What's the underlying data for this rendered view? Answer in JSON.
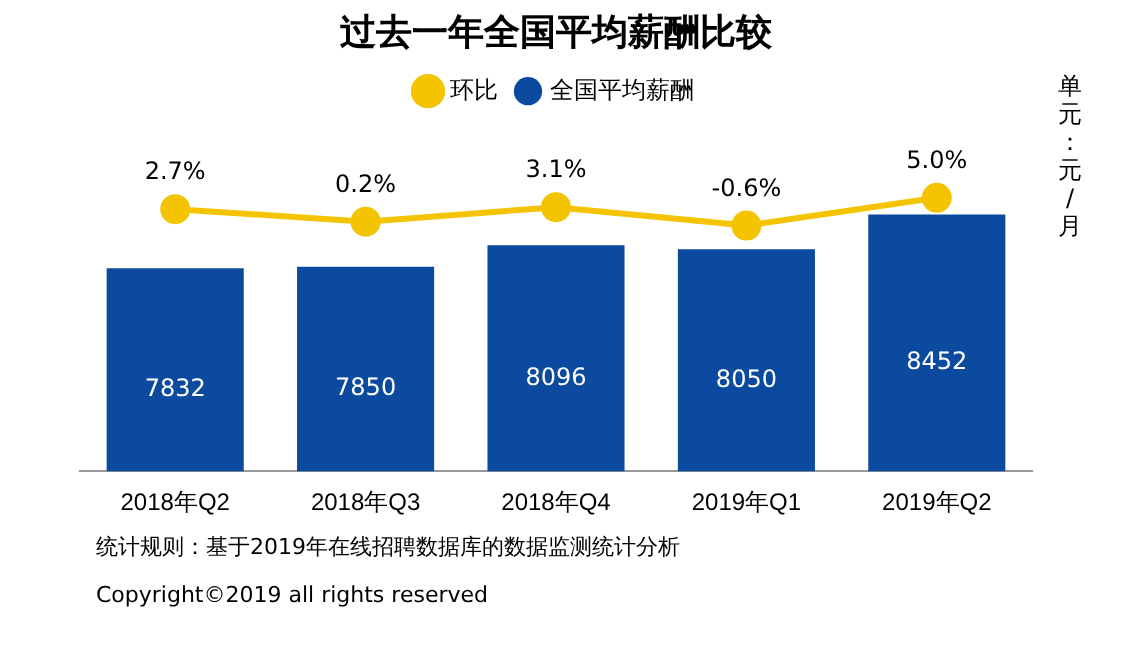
{
  "chart_data": {
    "type": "bar",
    "title": "过去一年全国平均薪酬比较",
    "ylabel": "单元：元/月",
    "categories": [
      "2018年Q2",
      "2018年Q3",
      "2018年Q4",
      "2019年Q1",
      "2019年Q2"
    ],
    "series": [
      {
        "name": "全国平均薪酬",
        "color": "#0b4a9e",
        "values": [
          7832,
          7850,
          8096,
          8050,
          8452
        ]
      },
      {
        "name": "环比",
        "type": "line",
        "axis": "y2",
        "color": "#f5c400",
        "values": [
          2.7,
          0.2,
          3.1,
          -0.6,
          5.0
        ],
        "value_labels": [
          "2.7%",
          "0.2%",
          "3.1%",
          "-0.6%",
          "5.0%"
        ]
      }
    ],
    "tick_labels": "x",
    "grid": false,
    "legend": "top",
    "marker": "circle",
    "data_labels": true,
    "annotations": [
      "统计规则：基于2019年在线招聘数据库的数据监测统计分析",
      "Copyright©2019 all rights reserved"
    ]
  }
}
